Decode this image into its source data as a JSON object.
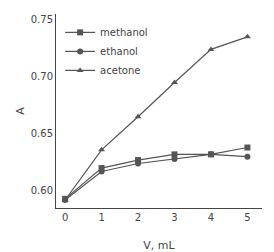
{
  "chart_data": {
    "type": "line",
    "x": [
      0,
      1,
      2,
      3,
      4,
      5
    ],
    "series": [
      {
        "name": "methanol",
        "color": "#555555",
        "marker": "square",
        "values": [
          0.593,
          0.62,
          0.627,
          0.632,
          0.632,
          0.638
        ]
      },
      {
        "name": "ethanol",
        "color": "#555555",
        "marker": "circle",
        "values": [
          0.592,
          0.617,
          0.624,
          0.628,
          0.632,
          0.63
        ]
      },
      {
        "name": "acetone",
        "color": "#555555",
        "marker": "triangle-up",
        "values": [
          0.592,
          0.636,
          0.665,
          0.695,
          0.724,
          0.735
        ]
      }
    ],
    "xlabel": "V, mL",
    "ylabel": "A",
    "xlim": [
      -0.25,
      5.4
    ],
    "xticks": [
      0,
      1,
      2,
      3,
      4,
      5
    ],
    "ylim": [
      0.585,
      0.755
    ],
    "yticks": [
      {
        "value": 0.6,
        "label": "0.60"
      },
      0.65,
      {
        "value": 0.7,
        "label": "0.70"
      },
      0.75
    ],
    "grid": false,
    "legend": "upper left"
  }
}
